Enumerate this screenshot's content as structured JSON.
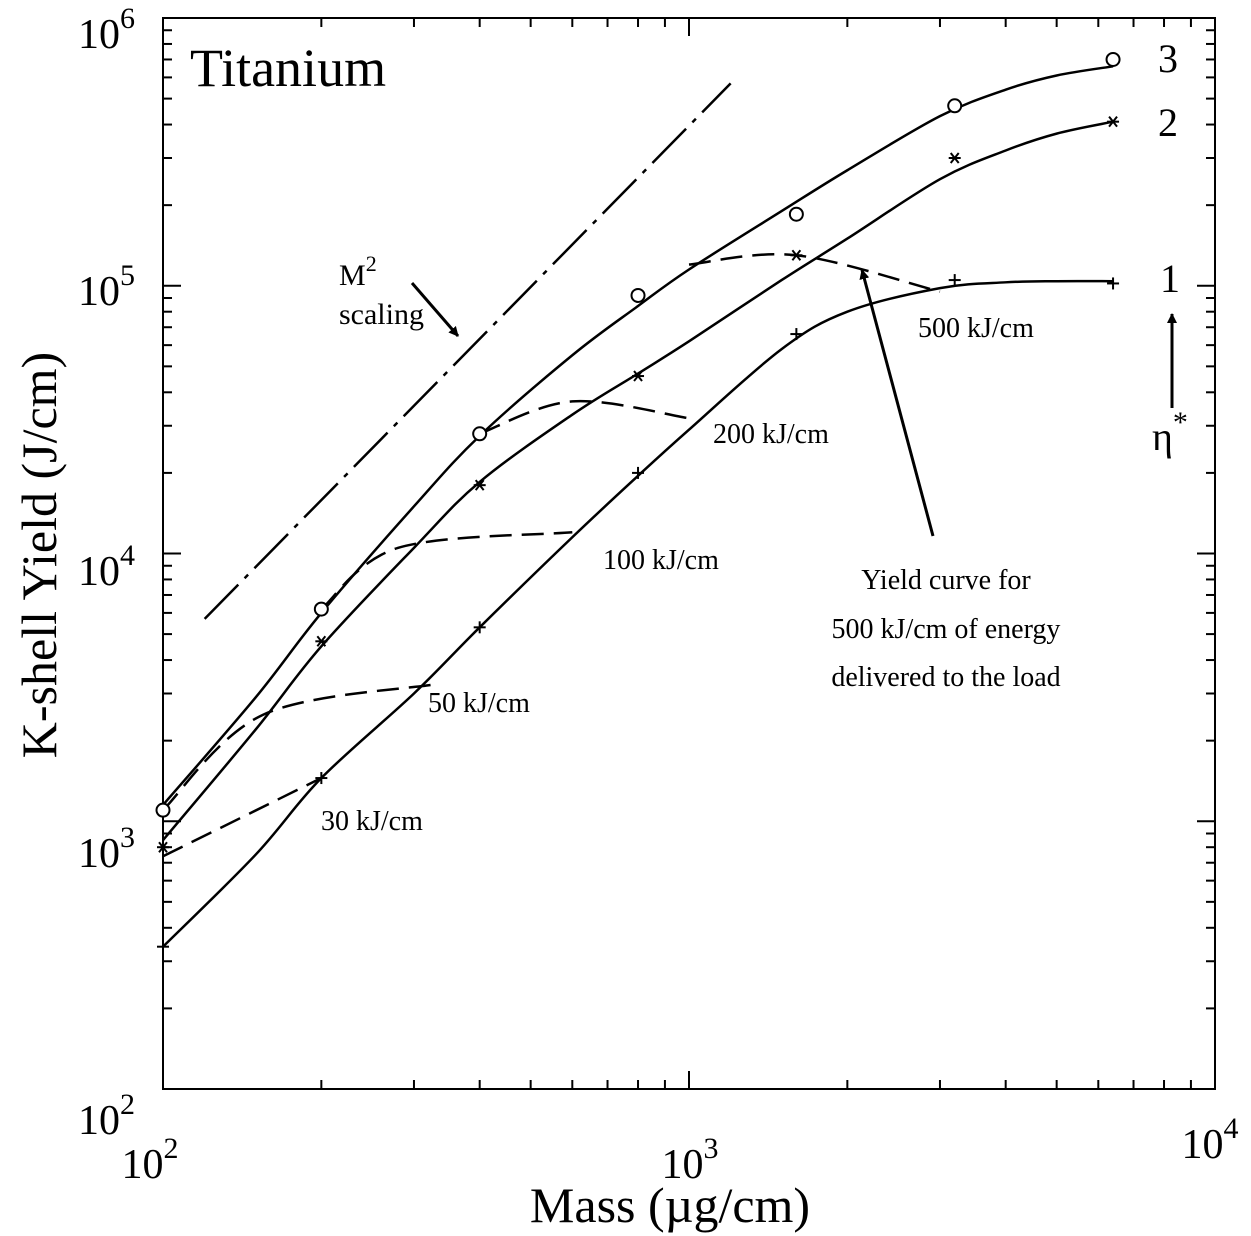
{
  "chart_data": {
    "type": "line",
    "title": "Titanium",
    "xlabel": "Mass (µg/cm)",
    "ylabel": "K-shell Yield (J/cm)",
    "xscale": "log",
    "yscale": "log",
    "xlim": [
      100,
      10000
    ],
    "ylim": [
      100,
      1000000
    ],
    "grid": false,
    "x_ticks": [
      {
        "base": "10",
        "exp": "2"
      },
      {
        "base": "10",
        "exp": "3"
      },
      {
        "base": "10",
        "exp": "4"
      }
    ],
    "y_ticks": [
      {
        "base": "10",
        "exp": "2"
      },
      {
        "base": "10",
        "exp": "3"
      },
      {
        "base": "10",
        "exp": "4"
      },
      {
        "base": "10",
        "exp": "5"
      },
      {
        "base": "10",
        "exp": "6"
      }
    ],
    "series": [
      {
        "name": "3",
        "marker": "circle",
        "points": [
          [
            100,
            1100
          ],
          [
            200,
            6200
          ],
          [
            400,
            28000
          ],
          [
            800,
            92000
          ],
          [
            1600,
            185000
          ],
          [
            3200,
            470000
          ],
          [
            6400,
            700000
          ]
        ],
        "curve": [
          [
            100,
            1150
          ],
          [
            150,
            2900
          ],
          [
            200,
            6000
          ],
          [
            300,
            15000
          ],
          [
            400,
            27500
          ],
          [
            600,
            55000
          ],
          [
            800,
            84000
          ],
          [
            1000,
            115000
          ],
          [
            1500,
            190000
          ],
          [
            2000,
            270000
          ],
          [
            3000,
            430000
          ],
          [
            4000,
            540000
          ],
          [
            5000,
            610000
          ],
          [
            6400,
            660000
          ]
        ]
      },
      {
        "name": "2",
        "marker": "asterisk",
        "points": [
          [
            100,
            800
          ],
          [
            200,
            4700
          ],
          [
            400,
            18000
          ],
          [
            800,
            46000
          ],
          [
            1600,
            130000
          ],
          [
            3200,
            300000
          ],
          [
            6400,
            410000
          ]
        ],
        "curve": [
          [
            100,
            850
          ],
          [
            150,
            2200
          ],
          [
            200,
            4500
          ],
          [
            300,
            10500
          ],
          [
            400,
            18500
          ],
          [
            600,
            33000
          ],
          [
            800,
            47000
          ],
          [
            1000,
            62000
          ],
          [
            1500,
            105000
          ],
          [
            2000,
            150000
          ],
          [
            3000,
            250000
          ],
          [
            4000,
            320000
          ],
          [
            5000,
            370000
          ],
          [
            6400,
            410000
          ]
        ]
      },
      {
        "name": "1",
        "marker": "plus",
        "points": [
          [
            100,
            340
          ],
          [
            200,
            1450
          ],
          [
            400,
            5300
          ],
          [
            800,
            20000
          ],
          [
            1600,
            66000
          ],
          [
            3200,
            105000
          ],
          [
            6400,
            102000
          ]
        ],
        "curve": [
          [
            100,
            340
          ],
          [
            150,
            750
          ],
          [
            200,
            1450
          ],
          [
            300,
            3000
          ],
          [
            400,
            5300
          ],
          [
            600,
            11500
          ],
          [
            800,
            19500
          ],
          [
            1000,
            29000
          ],
          [
            1500,
            58000
          ],
          [
            2000,
            80000
          ],
          [
            3000,
            98000
          ],
          [
            4000,
            103000
          ],
          [
            5000,
            104000
          ],
          [
            6400,
            104000
          ]
        ]
      }
    ],
    "energy_curves": [
      {
        "label": "30 kJ/cm",
        "points": [
          [
            100,
            740
          ],
          [
            200,
            1450
          ]
        ]
      },
      {
        "label": "50 kJ/cm",
        "points": [
          [
            100,
            1100
          ],
          [
            155,
            2500
          ],
          [
            330,
            3250
          ]
        ]
      },
      {
        "label": "100 kJ/cm",
        "points": [
          [
            200,
            6200
          ],
          [
            280,
            10500
          ],
          [
            600,
            12000
          ]
        ]
      },
      {
        "label": "200 kJ/cm",
        "points": [
          [
            400,
            28000
          ],
          [
            600,
            37000
          ],
          [
            1000,
            32000
          ]
        ]
      },
      {
        "label": "500 kJ/cm",
        "points": [
          [
            1000,
            120000
          ],
          [
            1600,
            130000
          ],
          [
            3000,
            95000
          ]
        ]
      }
    ],
    "reference_line": {
      "label": "scaling",
      "label_base": "M",
      "label_sup": "2",
      "points": [
        [
          120,
          5700
        ],
        [
          1200,
          570000
        ]
      ]
    },
    "annotations": {
      "yield_curve_note": [
        "Yield curve for",
        "500 kJ/cm of energy",
        "delivered to the load"
      ],
      "eta_label": "η",
      "eta_sup": "*"
    }
  }
}
